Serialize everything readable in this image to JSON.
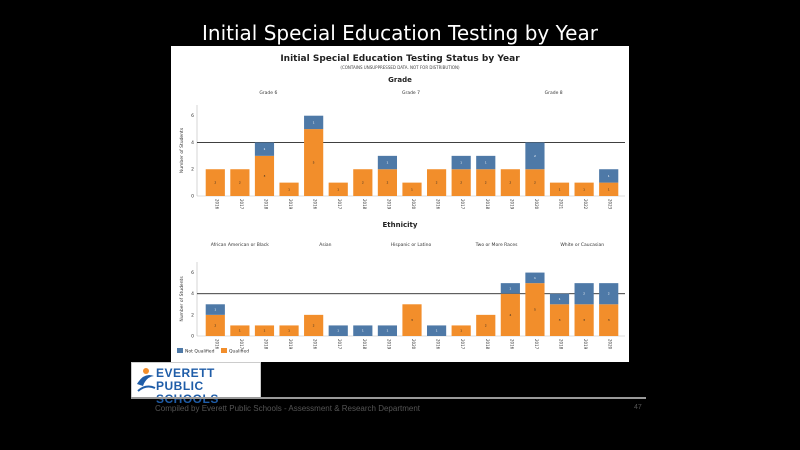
{
  "slide": {
    "title": "Initial Special Education Testing by Year",
    "footer": "Compiled by Everett Public Schools - Assessment & Research Department",
    "page_number": "47"
  },
  "logo": {
    "line1": "EVERETT",
    "line2": "PUBLIC SCHOOLS"
  },
  "colors": {
    "not_qualified": "#4e79a7",
    "qualified": "#f28e2b",
    "background": "#000000"
  },
  "chart_data": [
    {
      "type": "bar",
      "stacked": true,
      "title": "Initial Special Education Testing Status by Year",
      "subtitle": "(CONTAINS UNSUPPRESSED DATA. NOT FOR DISTRIBUTION)",
      "header": "Grade",
      "panel_labels": [
        "Grade 6",
        "Grade 7",
        "Grade 8"
      ],
      "ylabel": "Number of Students",
      "yticks": [
        0,
        2,
        4,
        6
      ],
      "ylim": [
        0,
        6.8
      ],
      "reference_line": 4,
      "categories": [
        "2016",
        "2017",
        "2018",
        "2019",
        "2016",
        "2017",
        "2018",
        "2019",
        "2020",
        "2016",
        "2017",
        "2018",
        "2019",
        "2020",
        "2021",
        "2022",
        "2023"
      ],
      "series": [
        {
          "name": "Qualified",
          "values": [
            2,
            2,
            3,
            1,
            5,
            1,
            2,
            2,
            1,
            2,
            2,
            2,
            2,
            2,
            1,
            1,
            1
          ]
        },
        {
          "name": "Not Qualified",
          "values": [
            0,
            0,
            1,
            0,
            1,
            0,
            0,
            1,
            0,
            0,
            1,
            1,
            0,
            2,
            0,
            0,
            1
          ]
        }
      ]
    },
    {
      "type": "bar",
      "stacked": true,
      "header": "Ethnicity",
      "panel_labels": [
        "African American or Black",
        "Asian",
        "Hispanic or Latino",
        "Two or More Races",
        "White or Caucasian"
      ],
      "ylabel": "Number of Students",
      "yticks": [
        0,
        2,
        4,
        6
      ],
      "ylim": [
        0,
        7
      ],
      "reference_line": 4,
      "categories": [
        "2016",
        "2017",
        "2018",
        "2019",
        "2016",
        "2017",
        "2018",
        "2019",
        "2020",
        "2016",
        "2017",
        "2018",
        "2016",
        "2017",
        "2018",
        "2019",
        "2020"
      ],
      "series": [
        {
          "name": "Qualified",
          "values": [
            2,
            1,
            1,
            1,
            2,
            0,
            0,
            0,
            3,
            0,
            1,
            2,
            4,
            5,
            3,
            3,
            3
          ]
        },
        {
          "name": "Not Qualified",
          "values": [
            1,
            0,
            0,
            0,
            0,
            1,
            1,
            1,
            0,
            1,
            0,
            0,
            1,
            1,
            1,
            2,
            2
          ]
        }
      ],
      "legend": {
        "position": "bottom-left",
        "entries": [
          "Not Qualified",
          "Qualified"
        ]
      }
    }
  ]
}
